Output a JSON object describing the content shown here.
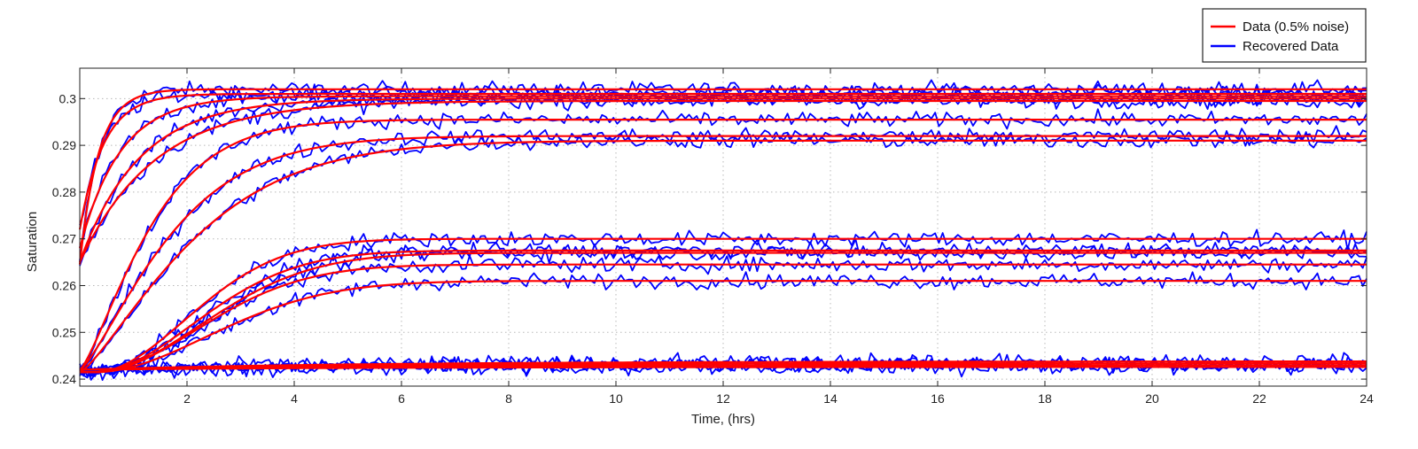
{
  "chart_data": {
    "type": "line",
    "title": "",
    "xlabel": "Time, (hrs)",
    "ylabel": "Saturation",
    "xlim": [
      0,
      24
    ],
    "ylim": [
      0.2385,
      0.3065
    ],
    "xticks": [
      2,
      4,
      6,
      8,
      10,
      12,
      14,
      16,
      18,
      20,
      22,
      24
    ],
    "yticks": [
      0.24,
      0.25,
      0.26,
      0.27,
      0.28,
      0.29,
      0.3
    ],
    "xtick_labels": [
      "2",
      "4",
      "6",
      "8",
      "10",
      "12",
      "14",
      "16",
      "18",
      "20",
      "22",
      "24"
    ],
    "ytick_labels": [
      "0.24",
      "0.25",
      "0.26",
      "0.27",
      "0.28",
      "0.29",
      "0.3"
    ],
    "grid": true,
    "legend_position": "top-right (outside plot)",
    "legend": [
      {
        "label": "Data (0.5% noise)",
        "color": "#ff0000"
      },
      {
        "label": "Recovered Data",
        "color": "#0000ff"
      }
    ],
    "noise_amplitude": 0.0016,
    "curve_model": "y = start + (plateau - start) * (1 - exp(-(max(0, t - delay) / tau)^shape))",
    "series": [
      {
        "start": 0.2645,
        "plateau": 0.302,
        "tau": 0.35,
        "delay": 0.0,
        "shape": 1.0
      },
      {
        "start": 0.272,
        "plateau": 0.301,
        "tau": 0.45,
        "delay": 0.0,
        "shape": 1.0
      },
      {
        "start": 0.268,
        "plateau": 0.3005,
        "tau": 0.75,
        "delay": 0.0,
        "shape": 1.0
      },
      {
        "start": 0.265,
        "plateau": 0.3,
        "tau": 1.1,
        "delay": 0.0,
        "shape": 1.0
      },
      {
        "start": 0.265,
        "plateau": 0.2995,
        "tau": 1.4,
        "delay": 0.0,
        "shape": 1.0
      },
      {
        "start": 0.242,
        "plateau": 0.2955,
        "tau": 1.5,
        "delay": 0.0,
        "shape": 1.3
      },
      {
        "start": 0.242,
        "plateau": 0.292,
        "tau": 1.9,
        "delay": 0.0,
        "shape": 1.3
      },
      {
        "start": 0.2415,
        "plateau": 0.291,
        "tau": 2.4,
        "delay": 0.0,
        "shape": 1.3
      },
      {
        "start": 0.2415,
        "plateau": 0.27,
        "tau": 2.4,
        "delay": 0.3,
        "shape": 1.9
      },
      {
        "start": 0.2415,
        "plateau": 0.2675,
        "tau": 2.6,
        "delay": 0.3,
        "shape": 1.9
      },
      {
        "start": 0.2415,
        "plateau": 0.267,
        "tau": 2.8,
        "delay": 0.3,
        "shape": 1.9
      },
      {
        "start": 0.2415,
        "plateau": 0.2645,
        "tau": 2.7,
        "delay": 0.3,
        "shape": 1.9
      },
      {
        "start": 0.2415,
        "plateau": 0.261,
        "tau": 3.0,
        "delay": 0.3,
        "shape": 1.9
      },
      {
        "start": 0.242,
        "plateau": 0.2438,
        "tau": 5.0,
        "delay": 0.0,
        "shape": 1.0
      },
      {
        "start": 0.242,
        "plateau": 0.2434,
        "tau": 5.0,
        "delay": 0.0,
        "shape": 1.0
      },
      {
        "start": 0.242,
        "plateau": 0.243,
        "tau": 5.0,
        "delay": 0.0,
        "shape": 1.0
      },
      {
        "start": 0.242,
        "plateau": 0.2426,
        "tau": 5.0,
        "delay": 0.0,
        "shape": 1.0
      }
    ]
  }
}
